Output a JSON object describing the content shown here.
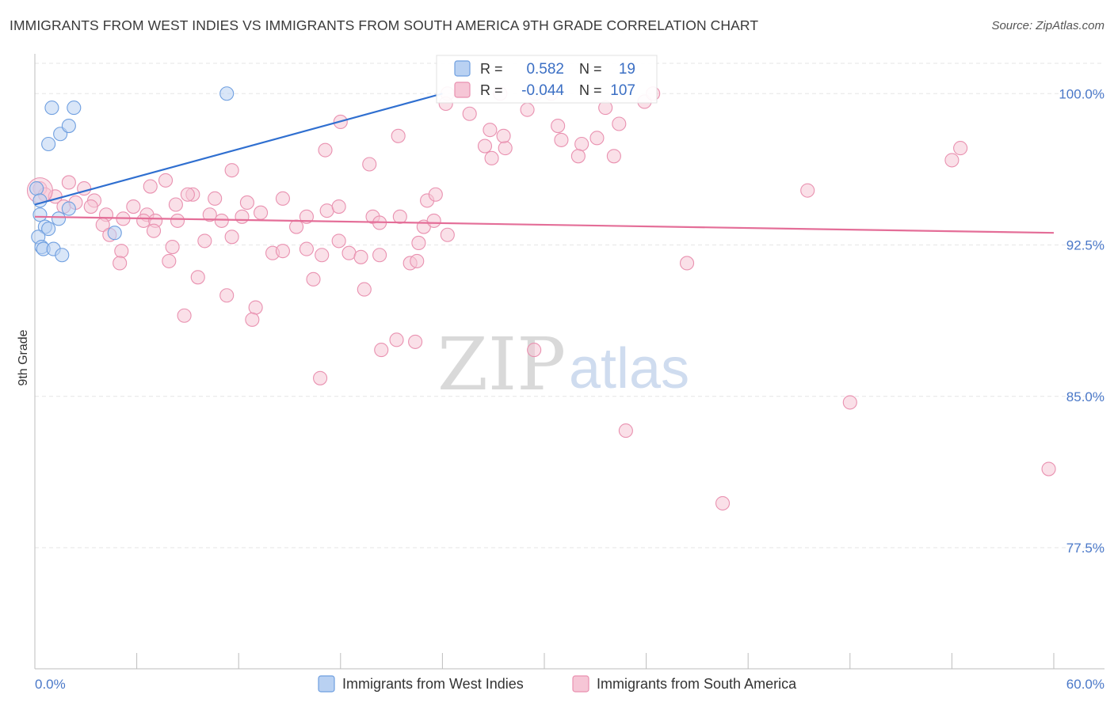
{
  "title": "IMMIGRANTS FROM WEST INDIES VS IMMIGRANTS FROM SOUTH AMERICA 9TH GRADE CORRELATION CHART",
  "source": "Source: ZipAtlas.com",
  "watermark": {
    "zip": "ZIP",
    "atlas": "atlas"
  },
  "colors": {
    "blue": "#6f9fe0",
    "blue_fill": "#b9d1f2",
    "pink": "#e991b0",
    "pink_fill": "#f6c6d6",
    "blue_line": "#2f6fd0",
    "pink_line": "#e46e98",
    "tick_text": "#4a78c8"
  },
  "stats": {
    "r_label": "R =",
    "n_label": "N =",
    "blue": {
      "r": "0.582",
      "n": "19"
    },
    "pink": {
      "r": "-0.044",
      "n": "107"
    }
  },
  "chart_data": {
    "type": "scatter",
    "title": "IMMIGRANTS FROM WEST INDIES VS IMMIGRANTS FROM SOUTH AMERICA 9TH GRADE CORRELATION CHART",
    "xlabel": "",
    "ylabel": "9th Grade",
    "xlim": [
      0,
      60
    ],
    "ylim": [
      71.5,
      101.5
    ],
    "x_tick_labels": [
      "0.0%",
      "60.0%"
    ],
    "y_ticks": [
      {
        "value": 100,
        "label": "100.0%"
      },
      {
        "value": 92.5,
        "label": "92.5%"
      },
      {
        "value": 85,
        "label": "85.0%"
      },
      {
        "value": 77.5,
        "label": "77.5%"
      }
    ],
    "grid": true,
    "legend_position": "bottom",
    "series": [
      {
        "name": "Immigrants from West Indies",
        "color": "#6f9fe0",
        "trend": {
          "x": [
            0,
            24.0
          ],
          "y": [
            94.5,
            100.0
          ]
        },
        "points": [
          [
            11.3,
            100.0
          ],
          [
            1.0,
            99.3
          ],
          [
            2.3,
            99.3
          ],
          [
            1.5,
            98.0
          ],
          [
            2.0,
            98.4
          ],
          [
            0.8,
            97.5
          ],
          [
            0.3,
            94.0
          ],
          [
            2.0,
            94.3
          ],
          [
            1.4,
            93.8
          ],
          [
            0.6,
            93.4
          ],
          [
            0.8,
            93.3
          ],
          [
            4.7,
            93.1
          ],
          [
            0.2,
            92.9
          ],
          [
            0.4,
            92.4
          ],
          [
            0.5,
            92.3
          ],
          [
            1.1,
            92.3
          ],
          [
            1.6,
            92.0
          ],
          [
            0.1,
            95.3
          ],
          [
            0.3,
            94.7
          ]
        ]
      },
      {
        "name": "Immigrants from South America",
        "color": "#e991b0",
        "trend": {
          "x": [
            0,
            60
          ],
          "y": [
            93.9,
            93.1
          ]
        },
        "points": [
          [
            0.3,
            95.3
          ],
          [
            0.6,
            95.0
          ],
          [
            1.2,
            94.9
          ],
          [
            2.0,
            95.6
          ],
          [
            2.9,
            95.3
          ],
          [
            2.4,
            94.6
          ],
          [
            3.5,
            94.7
          ],
          [
            1.7,
            94.4
          ],
          [
            4.2,
            94.0
          ],
          [
            5.8,
            94.4
          ],
          [
            6.6,
            94.0
          ],
          [
            7.7,
            95.7
          ],
          [
            9.3,
            95.0
          ],
          [
            8.3,
            94.5
          ],
          [
            10.6,
            94.8
          ],
          [
            12.5,
            94.6
          ],
          [
            13.3,
            94.1
          ],
          [
            14.6,
            94.8
          ],
          [
            3.3,
            94.4
          ],
          [
            4.0,
            93.5
          ],
          [
            5.2,
            93.8
          ],
          [
            6.4,
            93.7
          ],
          [
            7.1,
            93.7
          ],
          [
            8.4,
            93.7
          ],
          [
            10.3,
            94.0
          ],
          [
            11.0,
            93.7
          ],
          [
            12.2,
            93.9
          ],
          [
            15.4,
            93.4
          ],
          [
            16.0,
            93.9
          ],
          [
            17.2,
            94.2
          ],
          [
            17.9,
            94.4
          ],
          [
            19.9,
            93.9
          ],
          [
            20.3,
            93.6
          ],
          [
            22.9,
            93.4
          ],
          [
            23.5,
            93.7
          ],
          [
            23.1,
            94.7
          ],
          [
            24.3,
            93.0
          ],
          [
            4.4,
            93.0
          ],
          [
            7.0,
            93.2
          ],
          [
            10.0,
            92.7
          ],
          [
            11.6,
            92.9
          ],
          [
            14.0,
            92.1
          ],
          [
            14.6,
            92.2
          ],
          [
            16.0,
            92.3
          ],
          [
            16.9,
            92.0
          ],
          [
            17.9,
            92.7
          ],
          [
            18.5,
            92.1
          ],
          [
            19.2,
            91.9
          ],
          [
            20.3,
            92.0
          ],
          [
            22.6,
            92.6
          ],
          [
            22.1,
            91.6
          ],
          [
            22.5,
            91.7
          ],
          [
            5.1,
            92.2
          ],
          [
            5.0,
            91.6
          ],
          [
            7.9,
            91.7
          ],
          [
            8.1,
            92.4
          ],
          [
            9.6,
            90.9
          ],
          [
            8.8,
            89.0
          ],
          [
            11.3,
            90.0
          ],
          [
            13.0,
            89.4
          ],
          [
            12.8,
            88.8
          ],
          [
            16.4,
            90.8
          ],
          [
            19.4,
            90.3
          ],
          [
            21.3,
            87.8
          ],
          [
            22.4,
            87.7
          ],
          [
            20.4,
            87.3
          ],
          [
            29.4,
            87.3
          ],
          [
            16.8,
            85.9
          ],
          [
            6.8,
            95.4
          ],
          [
            9.0,
            95.0
          ],
          [
            11.6,
            96.2
          ],
          [
            17.1,
            97.2
          ],
          [
            19.7,
            96.5
          ],
          [
            18.0,
            98.6
          ],
          [
            21.4,
            97.9
          ],
          [
            26.5,
            97.4
          ],
          [
            26.9,
            96.8
          ],
          [
            27.7,
            97.3
          ],
          [
            29.0,
            99.2
          ],
          [
            31.0,
            97.7
          ],
          [
            32.2,
            97.5
          ],
          [
            32.0,
            96.9
          ],
          [
            33.6,
            99.3
          ],
          [
            34.4,
            98.5
          ],
          [
            35.9,
            99.6
          ],
          [
            36.4,
            100.0
          ],
          [
            24.3,
            100.0
          ],
          [
            27.4,
            100.0
          ],
          [
            29.5,
            100.0
          ],
          [
            30.4,
            100.0
          ],
          [
            24.2,
            99.5
          ],
          [
            25.6,
            99.0
          ],
          [
            26.8,
            98.2
          ],
          [
            27.6,
            97.9
          ],
          [
            30.8,
            98.4
          ],
          [
            33.1,
            97.8
          ],
          [
            34.1,
            96.9
          ],
          [
            54.0,
            96.7
          ],
          [
            54.5,
            97.3
          ],
          [
            45.5,
            95.2
          ],
          [
            38.4,
            91.6
          ],
          [
            48.0,
            84.7
          ],
          [
            34.8,
            83.3
          ],
          [
            40.5,
            79.7
          ],
          [
            59.7,
            81.4
          ],
          [
            23.6,
            95.0
          ],
          [
            21.5,
            93.9
          ]
        ]
      }
    ]
  },
  "legend": {
    "blue_label": "Immigrants from West Indies",
    "pink_label": "Immigrants from South America"
  }
}
